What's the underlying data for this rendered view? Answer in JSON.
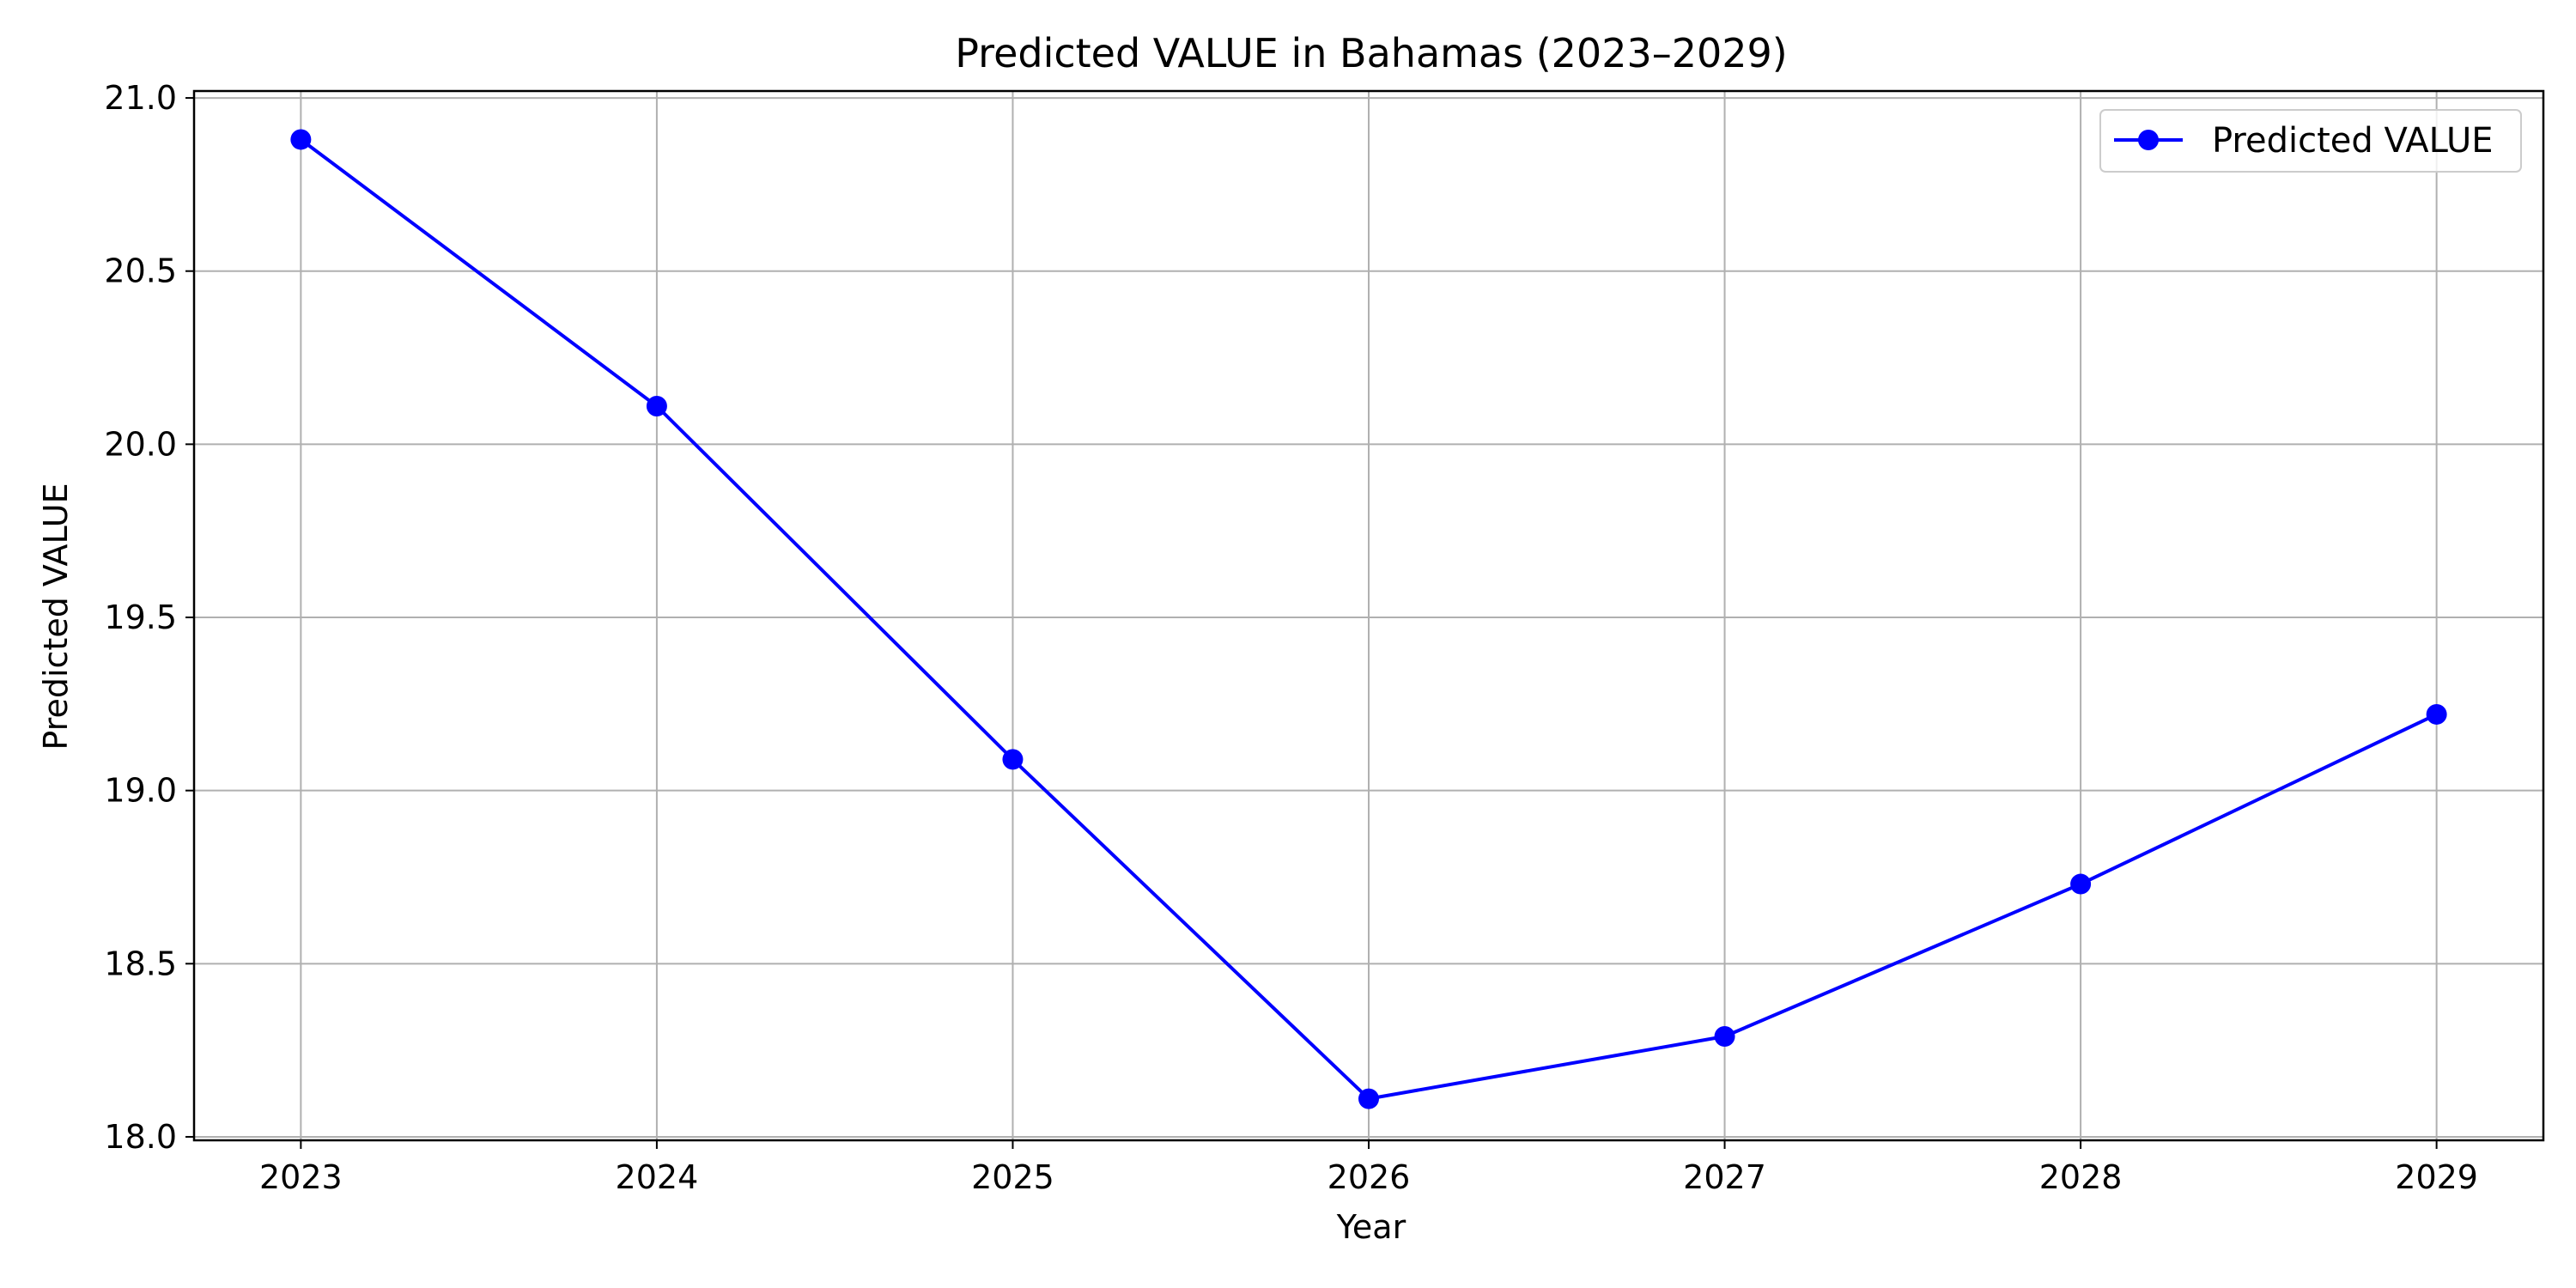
{
  "chart_data": {
    "type": "line",
    "title": "Predicted VALUE in Bahamas (2023–2029)",
    "xlabel": "Year",
    "ylabel": "Predicted VALUE",
    "x": [
      2023,
      2024,
      2025,
      2026,
      2027,
      2028,
      2029
    ],
    "x_tick_labels": [
      "2023",
      "2024",
      "2025",
      "2026",
      "2027",
      "2028",
      "2029"
    ],
    "y_ticks": [
      18.0,
      18.5,
      19.0,
      19.5,
      20.0,
      20.5,
      21.0
    ],
    "y_tick_labels": [
      "18.0",
      "18.5",
      "19.0",
      "19.5",
      "20.0",
      "20.5",
      "21.0"
    ],
    "xlim": [
      2022.7,
      2029.3
    ],
    "ylim": [
      17.99,
      21.02
    ],
    "grid": true,
    "legend_position": "top-right",
    "series": [
      {
        "name": "Predicted VALUE",
        "color": "#0000ff",
        "marker": "circle",
        "values": [
          20.88,
          20.11,
          19.09,
          18.11,
          18.29,
          18.73,
          19.22
        ]
      }
    ]
  }
}
